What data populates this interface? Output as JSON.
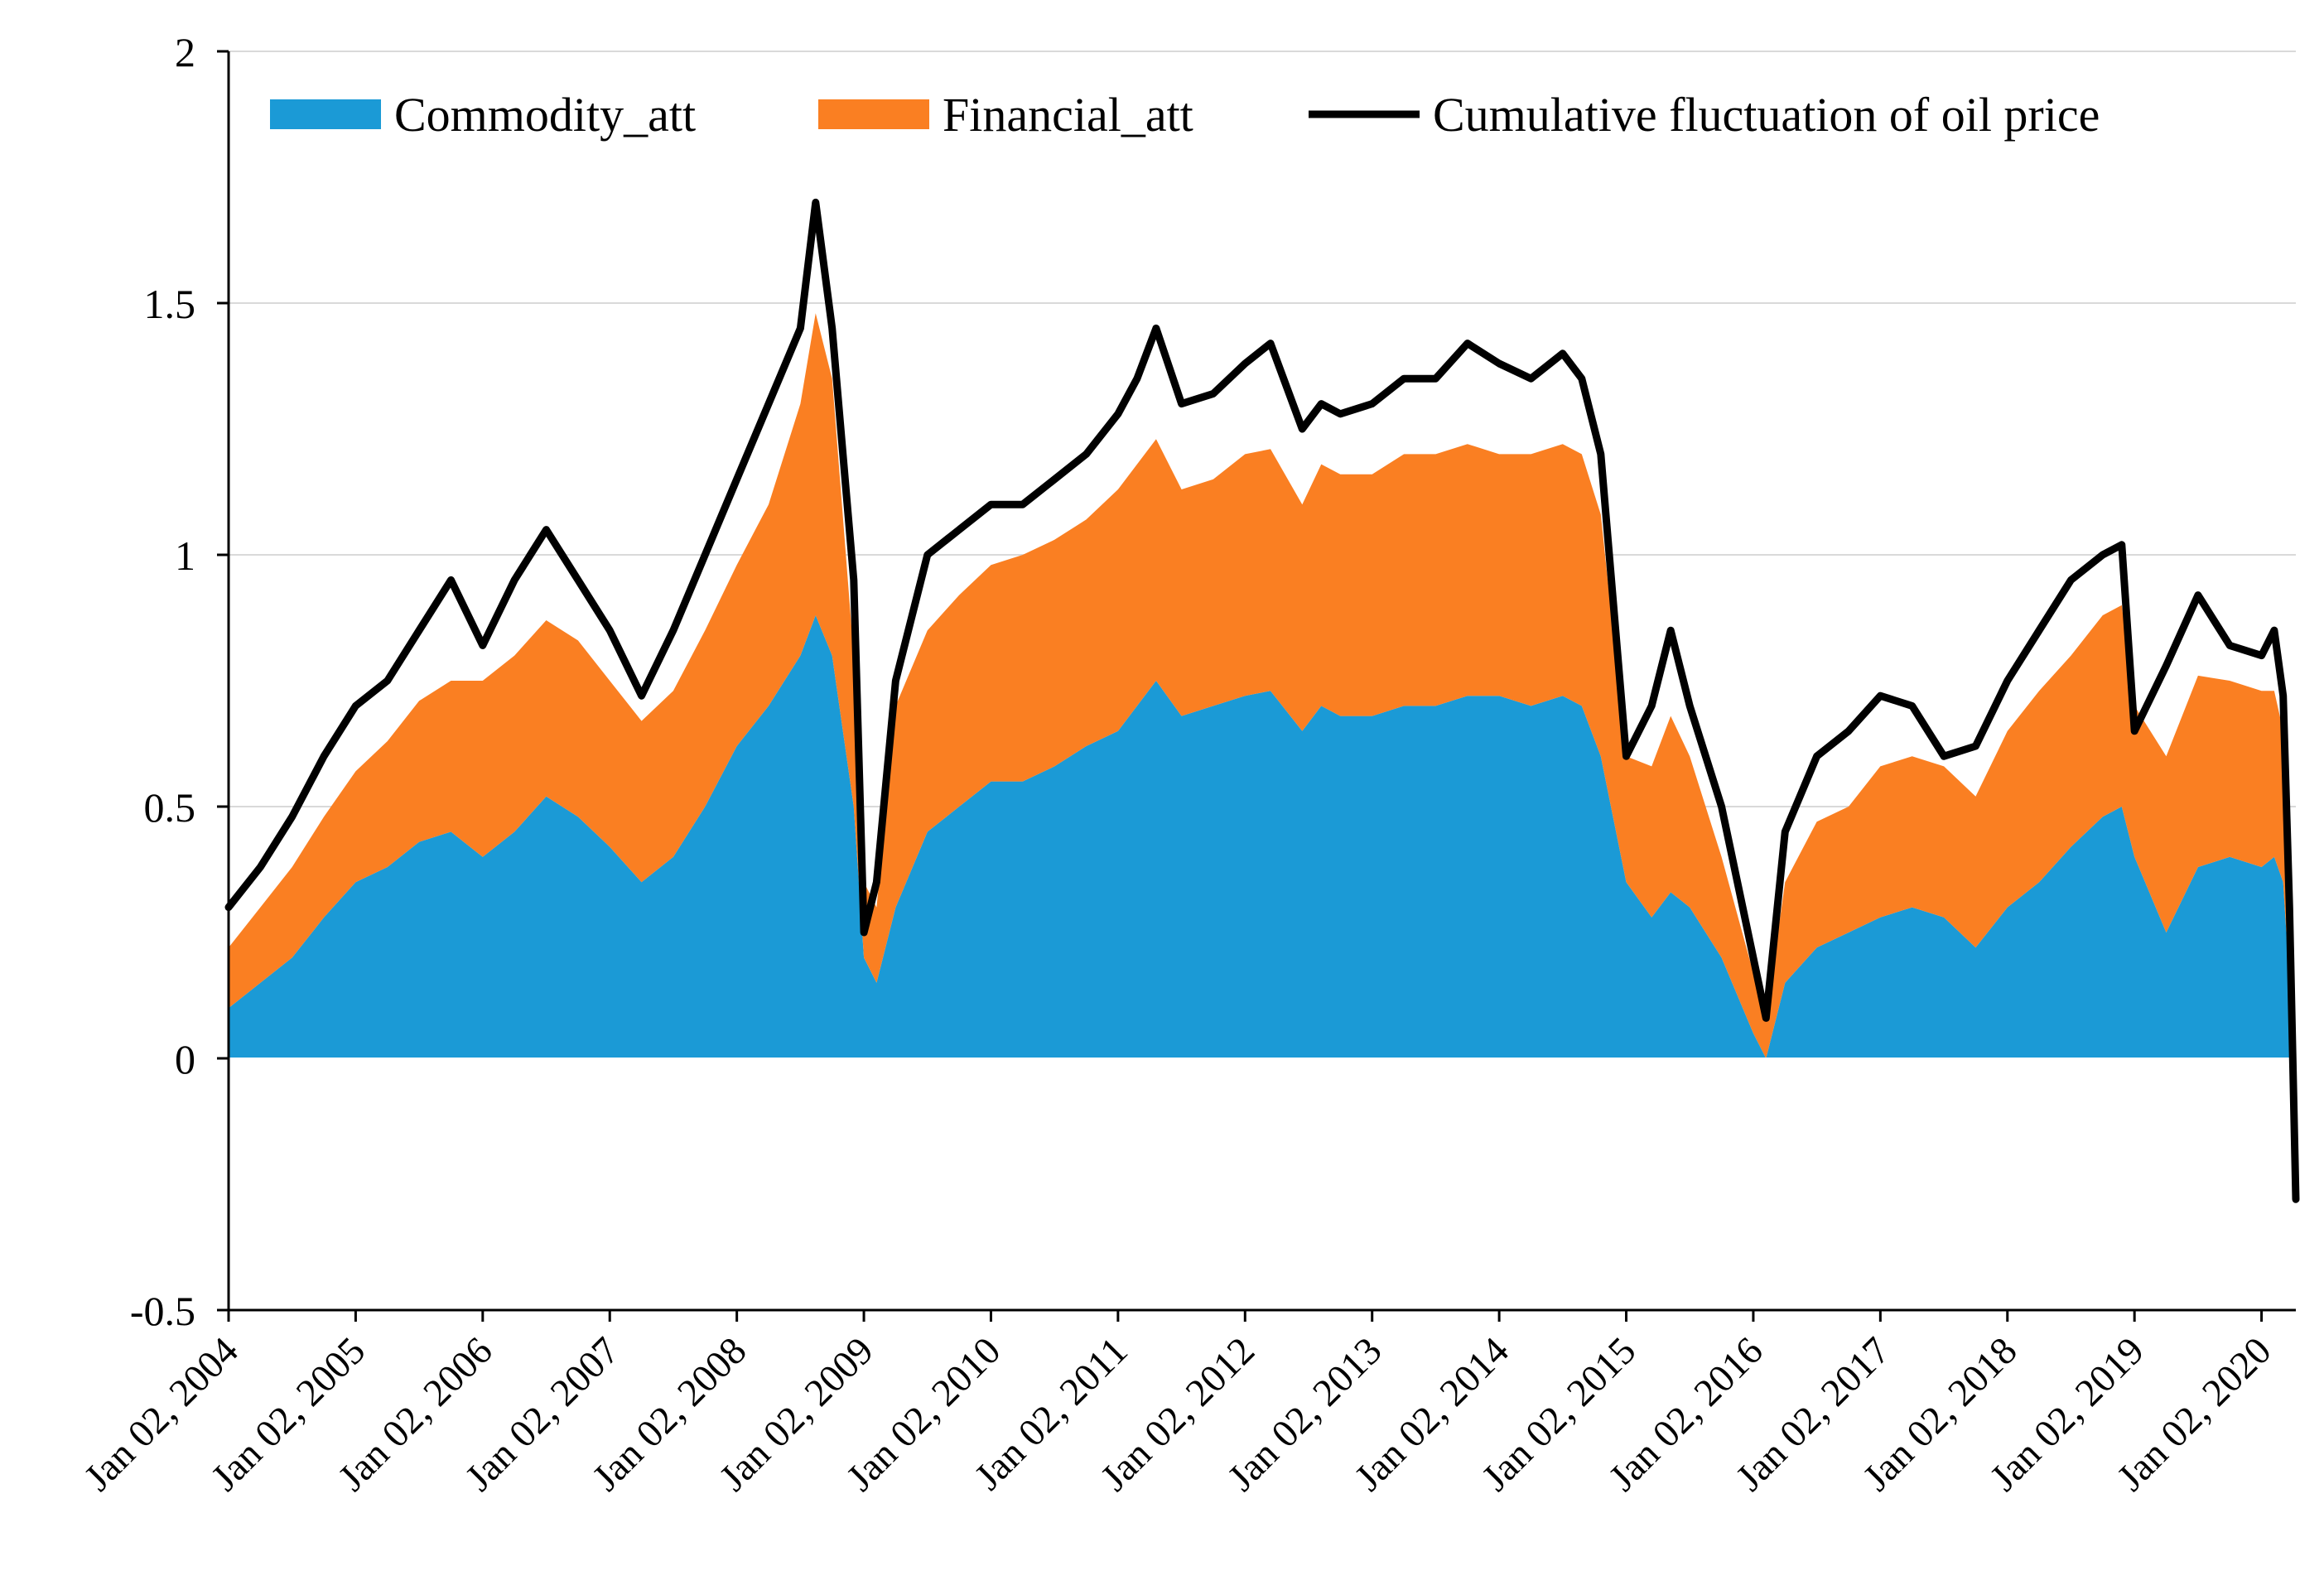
{
  "chart_data": {
    "type": "area",
    "title": "",
    "xlabel": "",
    "ylabel": "",
    "ylim": [
      -0.5,
      2
    ],
    "yticks": [
      "2",
      "1.5",
      "1",
      "0.5",
      "0",
      "-0.5"
    ],
    "ytick_values": [
      2,
      1.5,
      1,
      0.5,
      0,
      -0.5
    ],
    "xlim": [
      2004.0,
      2020.27
    ],
    "xtick_labels": [
      "Jan 02, 2004",
      "Jan 02, 2005",
      "Jan 02, 2006",
      "Jan 02, 2007",
      "Jan 02, 2008",
      "Jan 02, 2009",
      "Jan 02, 2010",
      "Jan 02, 2011",
      "Jan 02, 2012",
      "Jan 02, 2013",
      "Jan 02, 2014",
      "Jan 02, 2015",
      "Jan 02, 2016",
      "Jan 02, 2017",
      "Jan 02, 2018",
      "Jan 02, 2019",
      "Jan 02, 2020"
    ],
    "xtick_values": [
      2004,
      2005,
      2006,
      2007,
      2008,
      2009,
      2010,
      2011,
      2012,
      2013,
      2014,
      2015,
      2016,
      2017,
      2018,
      2019,
      2020
    ],
    "grid": true,
    "legend_position": "top",
    "x": [
      2004.0,
      2004.25,
      2004.5,
      2004.75,
      2005.0,
      2005.25,
      2005.5,
      2005.75,
      2006.0,
      2006.25,
      2006.5,
      2006.75,
      2007.0,
      2007.25,
      2007.5,
      2007.75,
      2008.0,
      2008.25,
      2008.5,
      2008.62,
      2008.75,
      2008.92,
      2009.0,
      2009.1,
      2009.25,
      2009.5,
      2009.75,
      2010.0,
      2010.25,
      2010.5,
      2010.75,
      2011.0,
      2011.15,
      2011.3,
      2011.5,
      2011.75,
      2012.0,
      2012.2,
      2012.45,
      2012.6,
      2012.75,
      2013.0,
      2013.25,
      2013.5,
      2013.75,
      2014.0,
      2014.25,
      2014.5,
      2014.65,
      2014.8,
      2015.0,
      2015.2,
      2015.35,
      2015.5,
      2015.75,
      2016.0,
      2016.1,
      2016.25,
      2016.5,
      2016.75,
      2017.0,
      2017.25,
      2017.5,
      2017.75,
      2018.0,
      2018.25,
      2018.5,
      2018.75,
      2018.9,
      2019.0,
      2019.25,
      2019.5,
      2019.75,
      2020.0,
      2020.1,
      2020.17,
      2020.22,
      2020.27
    ],
    "series": [
      {
        "name": "Commodity_att",
        "color": "#1B9AD6",
        "values": [
          0.1,
          0.15,
          0.2,
          0.28,
          0.35,
          0.38,
          0.43,
          0.45,
          0.4,
          0.45,
          0.52,
          0.48,
          0.42,
          0.35,
          0.4,
          0.5,
          0.62,
          0.7,
          0.8,
          0.88,
          0.8,
          0.5,
          0.2,
          0.15,
          0.3,
          0.45,
          0.5,
          0.55,
          0.55,
          0.58,
          0.62,
          0.65,
          0.7,
          0.75,
          0.68,
          0.7,
          0.72,
          0.73,
          0.65,
          0.7,
          0.68,
          0.68,
          0.7,
          0.7,
          0.72,
          0.72,
          0.7,
          0.72,
          0.7,
          0.6,
          0.35,
          0.28,
          0.33,
          0.3,
          0.2,
          0.05,
          0.0,
          0.15,
          0.22,
          0.25,
          0.28,
          0.3,
          0.28,
          0.22,
          0.3,
          0.35,
          0.42,
          0.48,
          0.5,
          0.4,
          0.25,
          0.38,
          0.4,
          0.38,
          0.4,
          0.35,
          0.15,
          -0.02
        ]
      },
      {
        "name": "Financial_att",
        "color": "#FA7F22",
        "values": [
          0.12,
          0.15,
          0.18,
          0.2,
          0.22,
          0.25,
          0.28,
          0.3,
          0.35,
          0.35,
          0.35,
          0.35,
          0.33,
          0.32,
          0.33,
          0.35,
          0.36,
          0.4,
          0.5,
          0.6,
          0.55,
          0.3,
          0.15,
          0.15,
          0.4,
          0.4,
          0.42,
          0.43,
          0.45,
          0.45,
          0.45,
          0.48,
          0.48,
          0.48,
          0.45,
          0.45,
          0.48,
          0.48,
          0.45,
          0.48,
          0.48,
          0.48,
          0.5,
          0.5,
          0.5,
          0.48,
          0.5,
          0.5,
          0.5,
          0.48,
          0.25,
          0.3,
          0.35,
          0.3,
          0.2,
          0.12,
          0.08,
          0.2,
          0.25,
          0.25,
          0.3,
          0.3,
          0.3,
          0.3,
          0.35,
          0.38,
          0.38,
          0.4,
          0.4,
          0.3,
          0.35,
          0.38,
          0.35,
          0.35,
          0.33,
          0.3,
          0.15,
          0.0
        ]
      },
      {
        "name": "Cumulative fluctuation of oil price",
        "color": "#000000",
        "values": [
          0.3,
          0.38,
          0.48,
          0.6,
          0.7,
          0.75,
          0.85,
          0.95,
          0.82,
          0.95,
          1.05,
          0.95,
          0.85,
          0.72,
          0.85,
          1.0,
          1.15,
          1.3,
          1.45,
          1.7,
          1.45,
          0.95,
          0.25,
          0.35,
          0.75,
          1.0,
          1.05,
          1.1,
          1.1,
          1.15,
          1.2,
          1.28,
          1.35,
          1.45,
          1.3,
          1.32,
          1.38,
          1.42,
          1.25,
          1.3,
          1.28,
          1.3,
          1.35,
          1.35,
          1.42,
          1.38,
          1.35,
          1.4,
          1.35,
          1.2,
          0.6,
          0.7,
          0.85,
          0.7,
          0.5,
          0.2,
          0.08,
          0.45,
          0.6,
          0.65,
          0.72,
          0.7,
          0.6,
          0.62,
          0.75,
          0.85,
          0.95,
          1.0,
          1.02,
          0.65,
          0.78,
          0.92,
          0.82,
          0.8,
          0.85,
          0.72,
          0.3,
          -0.28
        ]
      }
    ]
  }
}
